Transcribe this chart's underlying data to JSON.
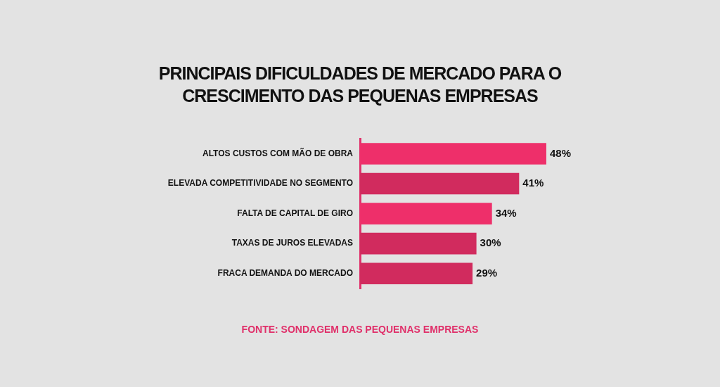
{
  "chart_data": {
    "type": "bar",
    "orientation": "horizontal",
    "title": "PRINCIPAIS DIFICULDADES DE MERCADO PARA O CRESCIMENTO DAS PEQUENAS EMPRESAS",
    "categories": [
      "ALTOS CUSTOS COM MÃO DE OBRA",
      "ELEVADA COMPETITIVIDADE NO SEGMENTO",
      "FALTA DE CAPITAL DE GIRO",
      "TAXAS DE JUROS ELEVADAS",
      "FRACA DEMANDA DO MERCADO"
    ],
    "values": [
      48,
      41,
      34,
      30,
      29
    ],
    "value_labels": [
      "48%",
      "41%",
      "34%",
      "30%",
      "29%"
    ],
    "colors": [
      "#ee2f6a",
      "#d12b5e",
      "#ee2f6a",
      "#d12b5e",
      "#d12b5e"
    ],
    "annotations": [
      "FONTE: SONDAGEM DAS PEQUENAS EMPRESAS"
    ],
    "legend": false
  }
}
